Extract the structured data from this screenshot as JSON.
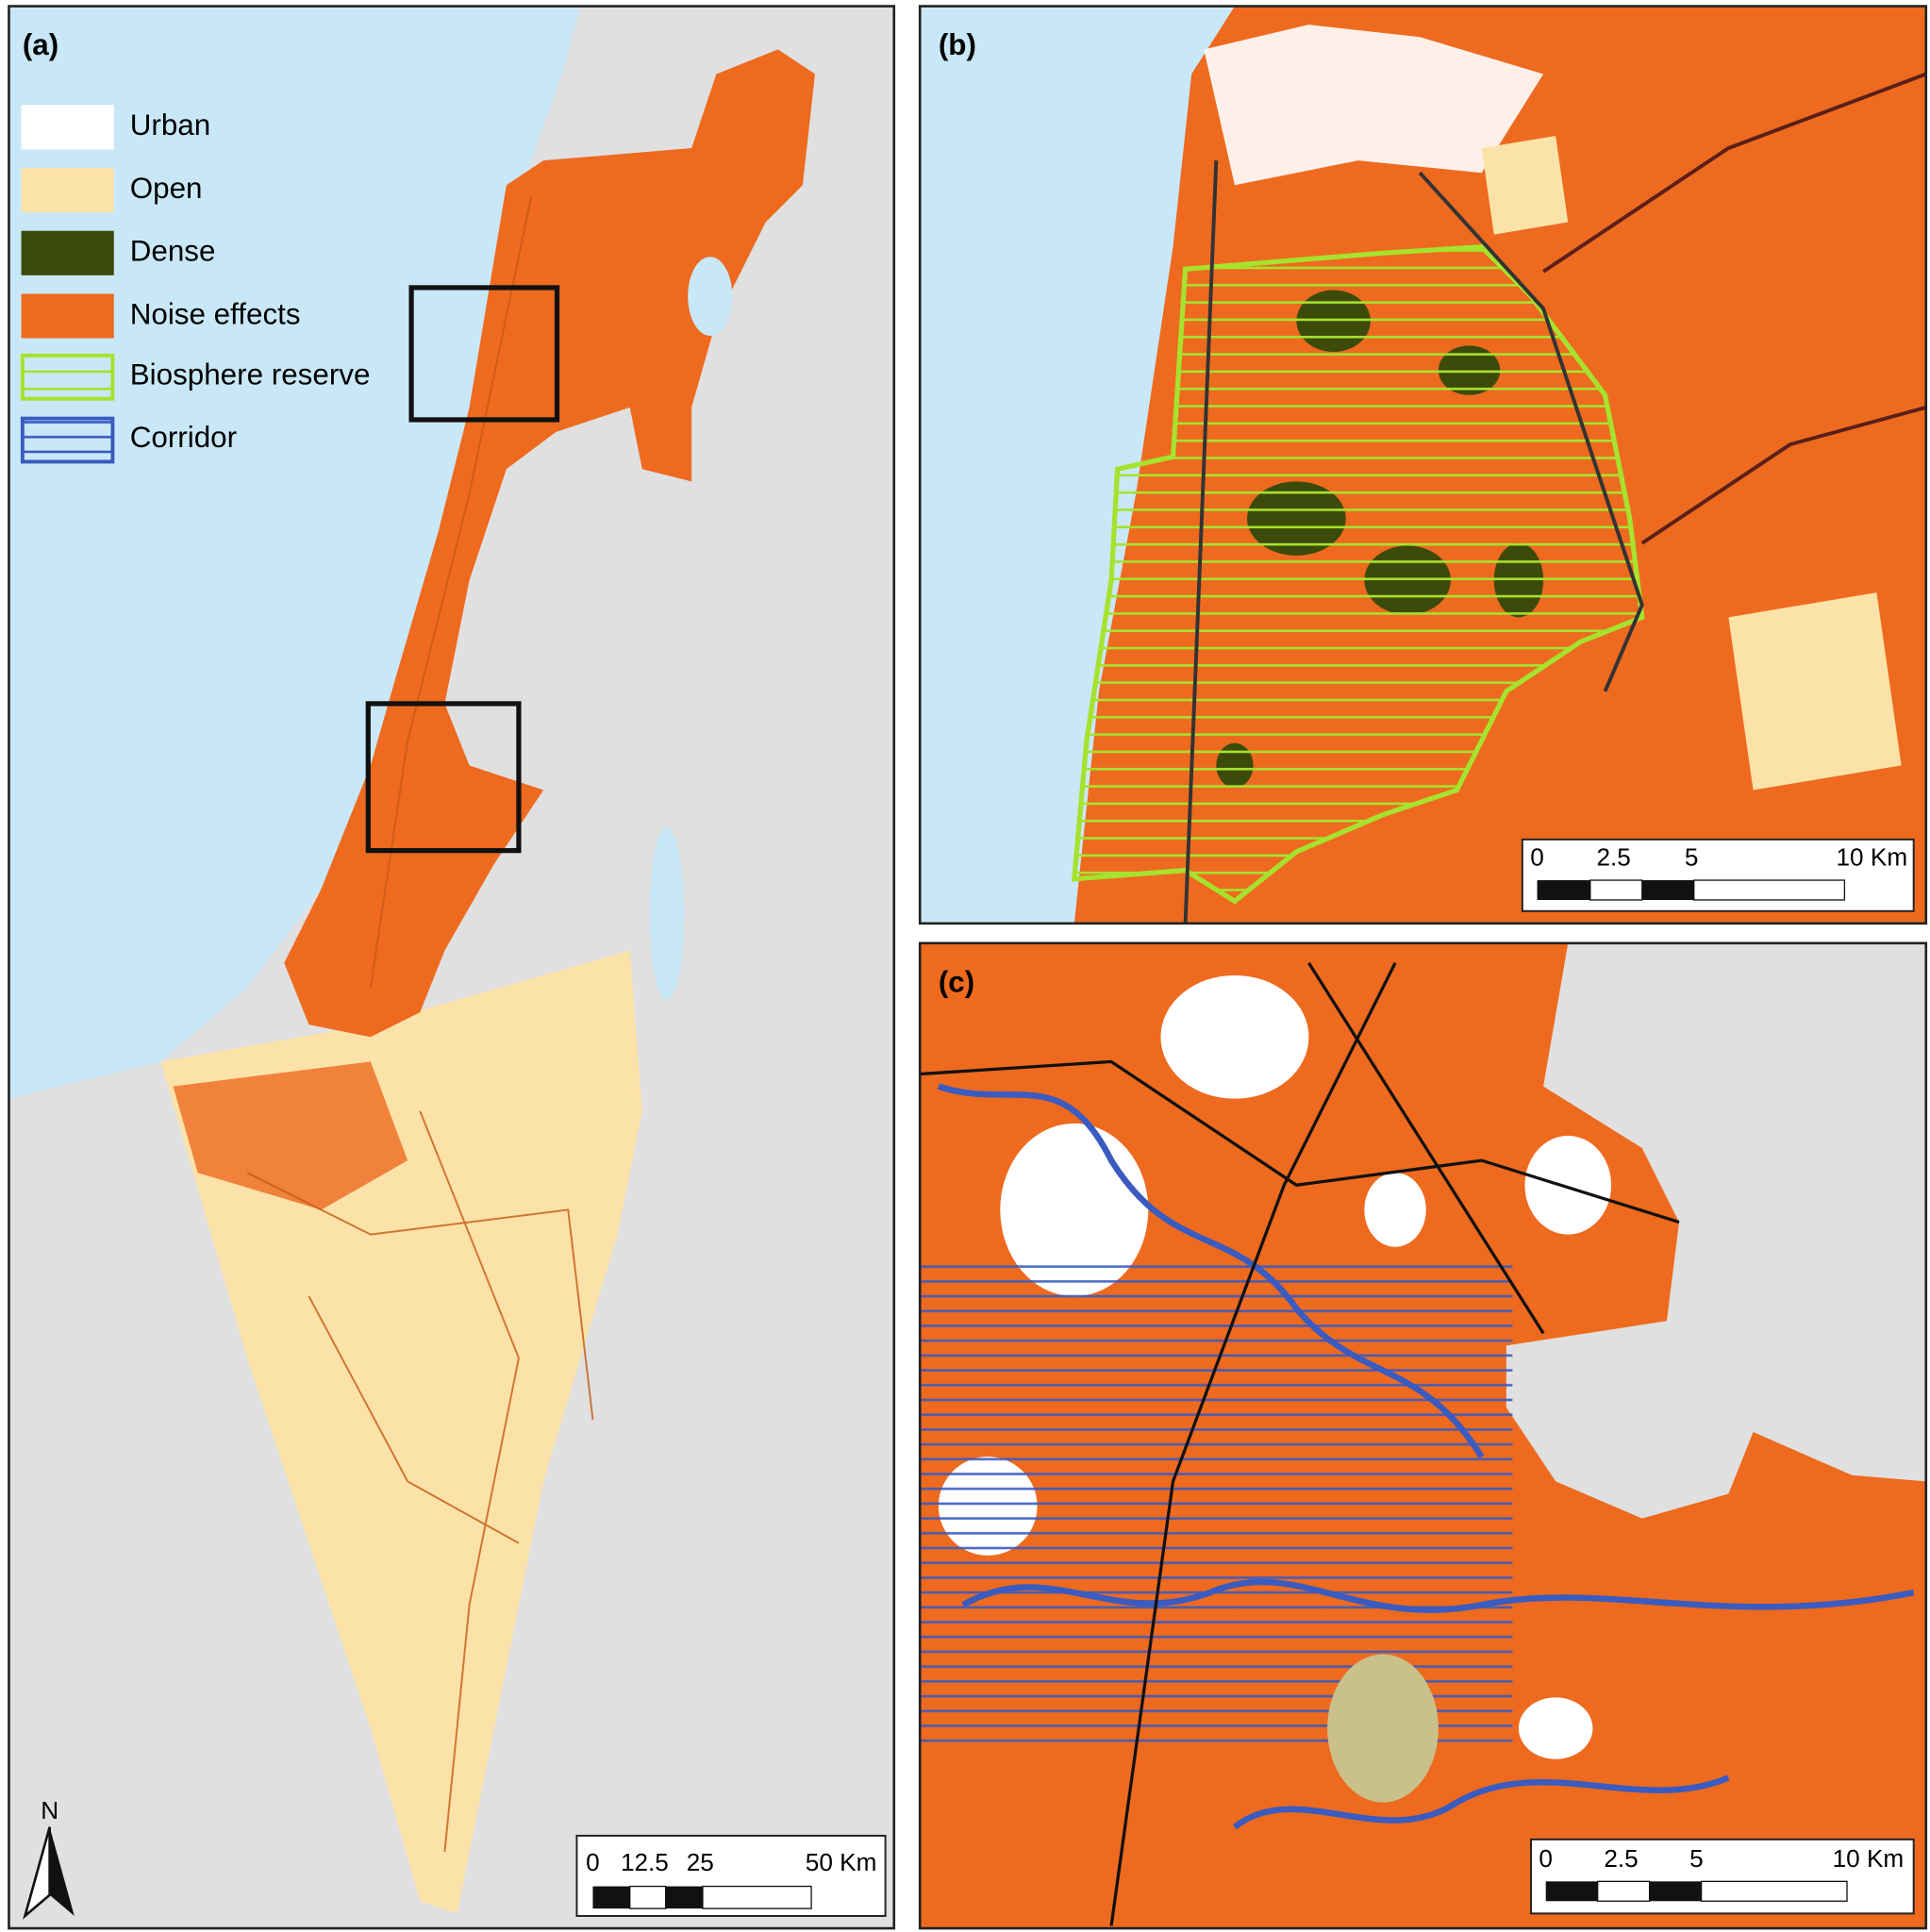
{
  "panels": [
    {
      "label": "(a)",
      "scale_bar": [
        "0",
        "12.5",
        "25",
        "50 Km"
      ]
    },
    {
      "label": "(b)",
      "scale_bar": [
        "0",
        "2.5",
        "5",
        "10 Km"
      ]
    },
    {
      "label": "(c)",
      "scale_bar": [
        "0",
        "2.5",
        "5",
        "10 Km"
      ]
    }
  ],
  "legend": [
    "Urban",
    "Open",
    "Dense",
    "Noise effects",
    "Biosphere reserve",
    "Corridor"
  ],
  "north_arrow": "N"
}
